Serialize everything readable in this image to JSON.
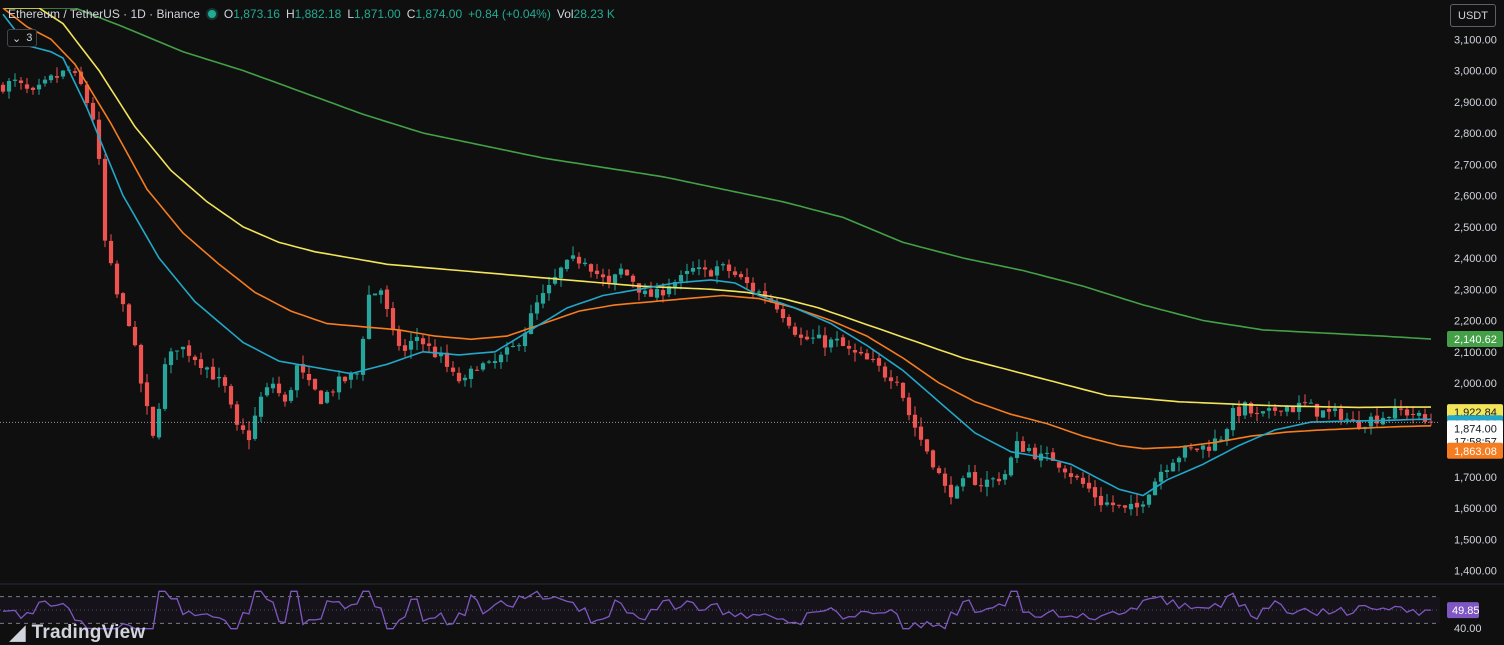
{
  "header": {
    "symbol": "Ethereum / TetherUS · 1D · Binance",
    "open_label": "O",
    "open": "1,873.16",
    "high_label": "H",
    "high": "1,882.18",
    "low_label": "L",
    "low": "1,871.00",
    "close_label": "C",
    "close": "1,874.00",
    "change": "+0.84 (+0.04%)",
    "vol_label": "Vol",
    "vol": "28.23 K"
  },
  "indicator_toggle": {
    "count": "3"
  },
  "price_unit": "USDT",
  "logo_text": "TradingView",
  "colors": {
    "background": "#0f0f0f",
    "up": "#26a69a",
    "down": "#ef5350",
    "ema_fast": "#22a7c9",
    "ema_mid": "#f57c1f",
    "ema_slow": "#f3e55a",
    "ema_long": "#43a047",
    "rsi": "#7e57c2"
  },
  "chart_data": {
    "type": "candlestick",
    "ylim": [
      1360,
      3200
    ],
    "y_ticks": [
      "3,100.00",
      "3,000.00",
      "2,900.00",
      "2,800.00",
      "2,700.00",
      "2,600.00",
      "2,500.00",
      "2,400.00",
      "2,300.00",
      "2,200.00",
      "2,100.00",
      "2,000.00",
      "1,900.00",
      "1,800.00",
      "1,700.00",
      "1,600.00",
      "1,500.00",
      "1,400.00"
    ],
    "y_tick_values": [
      3100,
      3000,
      2900,
      2800,
      2700,
      2600,
      2500,
      2400,
      2300,
      2200,
      2100,
      2000,
      1900,
      1800,
      1700,
      1600,
      1500,
      1400
    ],
    "bar_count": 240,
    "anchors": [
      [
        0,
        2950
      ],
      [
        3,
        2960
      ],
      [
        6,
        2920
      ],
      [
        9,
        2970
      ],
      [
        12,
        3000
      ],
      [
        14,
        2950
      ],
      [
        16,
        2850
      ],
      [
        17,
        2700
      ],
      [
        18,
        2450
      ],
      [
        20,
        2280
      ],
      [
        22,
        2200
      ],
      [
        24,
        2000
      ],
      [
        26,
        1820
      ],
      [
        28,
        2050
      ],
      [
        30,
        2120
      ],
      [
        32,
        2100
      ],
      [
        35,
        2050
      ],
      [
        38,
        1980
      ],
      [
        40,
        1850
      ],
      [
        42,
        1830
      ],
      [
        44,
        1950
      ],
      [
        46,
        2000
      ],
      [
        48,
        1930
      ],
      [
        50,
        2050
      ],
      [
        52,
        1990
      ],
      [
        54,
        1950
      ],
      [
        57,
        2000
      ],
      [
        60,
        2030
      ],
      [
        62,
        2280
      ],
      [
        64,
        2300
      ],
      [
        66,
        2150
      ],
      [
        68,
        2100
      ],
      [
        70,
        2150
      ],
      [
        72,
        2110
      ],
      [
        74,
        2080
      ],
      [
        76,
        2020
      ],
      [
        78,
        2000
      ],
      [
        80,
        2060
      ],
      [
        82,
        2050
      ],
      [
        84,
        2080
      ],
      [
        86,
        2110
      ],
      [
        88,
        2170
      ],
      [
        90,
        2250
      ],
      [
        92,
        2300
      ],
      [
        94,
        2360
      ],
      [
        96,
        2390
      ],
      [
        98,
        2400
      ],
      [
        100,
        2350
      ],
      [
        102,
        2310
      ],
      [
        104,
        2360
      ],
      [
        106,
        2330
      ],
      [
        108,
        2280
      ],
      [
        110,
        2280
      ],
      [
        112,
        2320
      ],
      [
        114,
        2330
      ],
      [
        116,
        2360
      ],
      [
        118,
        2350
      ],
      [
        120,
        2370
      ],
      [
        122,
        2360
      ],
      [
        124,
        2330
      ],
      [
        126,
        2300
      ],
      [
        128,
        2280
      ],
      [
        130,
        2250
      ],
      [
        132,
        2200
      ],
      [
        134,
        2140
      ],
      [
        136,
        2140
      ],
      [
        138,
        2130
      ],
      [
        140,
        2130
      ],
      [
        142,
        2100
      ],
      [
        144,
        2080
      ],
      [
        146,
        2060
      ],
      [
        148,
        2030
      ],
      [
        150,
        2020
      ],
      [
        152,
        1900
      ],
      [
        154,
        1820
      ],
      [
        156,
        1750
      ],
      [
        158,
        1660
      ],
      [
        160,
        1650
      ],
      [
        162,
        1700
      ],
      [
        164,
        1680
      ],
      [
        166,
        1690
      ],
      [
        168,
        1710
      ],
      [
        170,
        1800
      ],
      [
        172,
        1790
      ],
      [
        174,
        1760
      ],
      [
        176,
        1760
      ],
      [
        178,
        1730
      ],
      [
        180,
        1690
      ],
      [
        182,
        1660
      ],
      [
        184,
        1620
      ],
      [
        186,
        1610
      ],
      [
        188,
        1590
      ],
      [
        190,
        1600
      ],
      [
        192,
        1660
      ],
      [
        194,
        1720
      ],
      [
        196,
        1760
      ],
      [
        198,
        1780
      ],
      [
        200,
        1790
      ],
      [
        202,
        1800
      ],
      [
        204,
        1830
      ],
      [
        206,
        1900
      ],
      [
        208,
        1920
      ],
      [
        210,
        1890
      ],
      [
        212,
        1900
      ],
      [
        214,
        1930
      ],
      [
        216,
        1920
      ],
      [
        218,
        1930
      ],
      [
        220,
        1910
      ],
      [
        222,
        1900
      ],
      [
        224,
        1900
      ],
      [
        226,
        1870
      ],
      [
        228,
        1880
      ],
      [
        230,
        1890
      ],
      [
        232,
        1900
      ],
      [
        234,
        1910
      ],
      [
        236,
        1903
      ],
      [
        238,
        1874
      ]
    ],
    "ema_fast": [
      [
        0,
        3180
      ],
      [
        4,
        3080
      ],
      [
        8,
        3060
      ],
      [
        10,
        3040
      ],
      [
        14,
        2880
      ],
      [
        20,
        2600
      ],
      [
        26,
        2400
      ],
      [
        32,
        2260
      ],
      [
        40,
        2130
      ],
      [
        46,
        2070
      ],
      [
        52,
        2050
      ],
      [
        58,
        2030
      ],
      [
        64,
        2060
      ],
      [
        70,
        2100
      ],
      [
        76,
        2090
      ],
      [
        82,
        2100
      ],
      [
        88,
        2170
      ],
      [
        94,
        2240
      ],
      [
        100,
        2280
      ],
      [
        106,
        2300
      ],
      [
        112,
        2320
      ],
      [
        118,
        2330
      ],
      [
        122,
        2320
      ],
      [
        126,
        2280
      ],
      [
        132,
        2240
      ],
      [
        138,
        2190
      ],
      [
        144,
        2120
      ],
      [
        150,
        2040
      ],
      [
        156,
        1940
      ],
      [
        162,
        1840
      ],
      [
        168,
        1780
      ],
      [
        174,
        1760
      ],
      [
        178,
        1740
      ],
      [
        182,
        1700
      ],
      [
        186,
        1660
      ],
      [
        190,
        1640
      ],
      [
        194,
        1690
      ],
      [
        200,
        1740
      ],
      [
        206,
        1800
      ],
      [
        212,
        1850
      ],
      [
        218,
        1875
      ],
      [
        224,
        1878
      ],
      [
        230,
        1880
      ],
      [
        236,
        1884
      ],
      [
        238,
        1883.84
      ]
    ],
    "ema_mid": [
      [
        0,
        3200
      ],
      [
        4,
        3140
      ],
      [
        8,
        3100
      ],
      [
        12,
        3020
      ],
      [
        18,
        2830
      ],
      [
        24,
        2620
      ],
      [
        30,
        2480
      ],
      [
        36,
        2380
      ],
      [
        42,
        2290
      ],
      [
        48,
        2230
      ],
      [
        54,
        2190
      ],
      [
        60,
        2180
      ],
      [
        66,
        2170
      ],
      [
        72,
        2150
      ],
      [
        78,
        2140
      ],
      [
        84,
        2150
      ],
      [
        90,
        2190
      ],
      [
        96,
        2230
      ],
      [
        102,
        2250
      ],
      [
        108,
        2260
      ],
      [
        114,
        2270
      ],
      [
        120,
        2280
      ],
      [
        126,
        2270
      ],
      [
        132,
        2240
      ],
      [
        138,
        2200
      ],
      [
        144,
        2150
      ],
      [
        150,
        2080
      ],
      [
        156,
        2000
      ],
      [
        162,
        1940
      ],
      [
        168,
        1900
      ],
      [
        174,
        1870
      ],
      [
        180,
        1830
      ],
      [
        186,
        1800
      ],
      [
        190,
        1790
      ],
      [
        196,
        1795
      ],
      [
        202,
        1810
      ],
      [
        208,
        1830
      ],
      [
        214,
        1843
      ],
      [
        220,
        1850
      ],
      [
        226,
        1855
      ],
      [
        232,
        1860
      ],
      [
        238,
        1863.08
      ]
    ],
    "ema_slow": [
      [
        0,
        3200
      ],
      [
        6,
        3200
      ],
      [
        10,
        3150
      ],
      [
        16,
        3000
      ],
      [
        22,
        2820
      ],
      [
        28,
        2680
      ],
      [
        34,
        2580
      ],
      [
        40,
        2500
      ],
      [
        46,
        2450
      ],
      [
        52,
        2420
      ],
      [
        58,
        2400
      ],
      [
        64,
        2380
      ],
      [
        70,
        2370
      ],
      [
        76,
        2360
      ],
      [
        82,
        2350
      ],
      [
        88,
        2340
      ],
      [
        94,
        2330
      ],
      [
        100,
        2320
      ],
      [
        106,
        2310
      ],
      [
        112,
        2305
      ],
      [
        118,
        2300
      ],
      [
        124,
        2290
      ],
      [
        130,
        2270
      ],
      [
        136,
        2240
      ],
      [
        142,
        2200
      ],
      [
        148,
        2160
      ],
      [
        154,
        2120
      ],
      [
        160,
        2080
      ],
      [
        166,
        2050
      ],
      [
        172,
        2020
      ],
      [
        178,
        1990
      ],
      [
        184,
        1960
      ],
      [
        190,
        1950
      ],
      [
        196,
        1940
      ],
      [
        202,
        1935
      ],
      [
        208,
        1930
      ],
      [
        214,
        1926
      ],
      [
        220,
        1924
      ],
      [
        226,
        1922
      ],
      [
        232,
        1923
      ],
      [
        238,
        1922.84
      ]
    ],
    "ema_long": [
      [
        0,
        3200
      ],
      [
        12,
        3200
      ],
      [
        20,
        3140
      ],
      [
        30,
        3060
      ],
      [
        40,
        3000
      ],
      [
        50,
        2930
      ],
      [
        60,
        2860
      ],
      [
        70,
        2800
      ],
      [
        80,
        2760
      ],
      [
        90,
        2720
      ],
      [
        100,
        2690
      ],
      [
        110,
        2660
      ],
      [
        120,
        2620
      ],
      [
        130,
        2580
      ],
      [
        140,
        2530
      ],
      [
        150,
        2450
      ],
      [
        160,
        2400
      ],
      [
        170,
        2360
      ],
      [
        180,
        2310
      ],
      [
        190,
        2250
      ],
      [
        200,
        2200
      ],
      [
        210,
        2170
      ],
      [
        220,
        2160
      ],
      [
        230,
        2150
      ],
      [
        238,
        2140.62
      ]
    ],
    "last_close": 1874.0,
    "countdown": "17:58:57",
    "price_labels": {
      "ema_long": "2,140.62",
      "ema_slow": "1,922.84",
      "ema_fast": "1,883.84",
      "close": "1,874.00",
      "ema_mid": "1,863.08"
    },
    "rsi": {
      "value": 49.85,
      "value_label": "49.85",
      "tick_label": "40.00",
      "levels": [
        70,
        30
      ]
    }
  }
}
